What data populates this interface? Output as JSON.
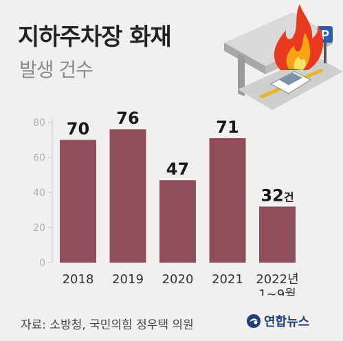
{
  "header": {
    "title": "지하주차장 화재",
    "subtitle": "발생 건수"
  },
  "footer": {
    "source": "자료: 소방청, 국민의힘 정우택 의원",
    "logo_text": "연합뉴스"
  },
  "colors": {
    "bar": "#8f4e5c",
    "axis": "#c8c8c8",
    "tick": "#b0b0b0",
    "value": "#1a1a1a"
  },
  "chart_data": {
    "type": "bar",
    "categories": [
      "2018",
      "2019",
      "2020",
      "2021",
      "2022년\n1~9월"
    ],
    "values": [
      70,
      76,
      47,
      71,
      32
    ],
    "value_labels": [
      "70",
      "76",
      "47",
      "71",
      "32건"
    ],
    "title": "지하주차장 화재",
    "subtitle": "발생 건수",
    "xlabel": "",
    "ylabel": "",
    "ylim": [
      0,
      80
    ],
    "yticks": [
      0,
      20,
      40,
      60,
      80
    ],
    "grid": false,
    "legend": "none"
  }
}
